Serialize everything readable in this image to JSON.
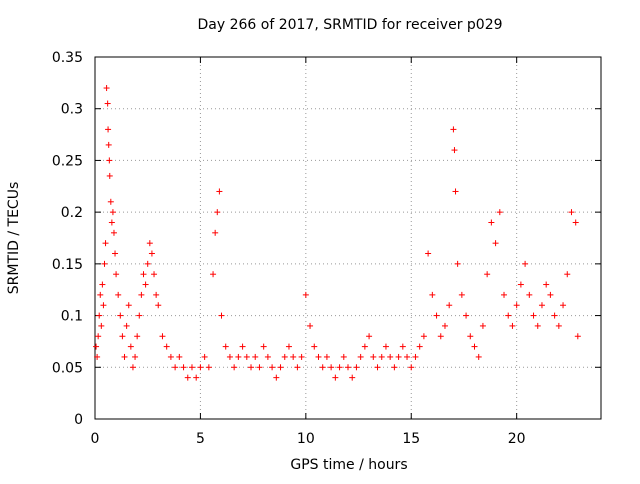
{
  "chart_data": {
    "type": "scatter",
    "title": "Day 266 of 2017, SRMTID for receiver p029",
    "xlabel": "GPS time / hours",
    "ylabel": "SRMTID / TECUs",
    "xlim": [
      0,
      24
    ],
    "ylim": [
      0,
      0.35
    ],
    "x_ticks": [
      0,
      5,
      10,
      15,
      20
    ],
    "x_tick_labels": [
      "0",
      "5",
      "10",
      "15",
      "20"
    ],
    "y_ticks": [
      0,
      0.05,
      0.1,
      0.15,
      0.2,
      0.25,
      0.3,
      0.35
    ],
    "y_tick_labels": [
      "0",
      "0.05",
      "0.1",
      "0.15",
      "0.2",
      "0.25",
      "0.3",
      "0.35"
    ],
    "grid": true,
    "marker": "+",
    "marker_color": "#ff0000",
    "series": [
      {
        "name": "SRMTID",
        "points": [
          [
            0.05,
            0.07
          ],
          [
            0.1,
            0.06
          ],
          [
            0.15,
            0.08
          ],
          [
            0.2,
            0.1
          ],
          [
            0.25,
            0.12
          ],
          [
            0.3,
            0.09
          ],
          [
            0.35,
            0.13
          ],
          [
            0.4,
            0.11
          ],
          [
            0.45,
            0.15
          ],
          [
            0.5,
            0.17
          ],
          [
            0.55,
            0.32
          ],
          [
            0.6,
            0.305
          ],
          [
            0.62,
            0.28
          ],
          [
            0.65,
            0.265
          ],
          [
            0.68,
            0.25
          ],
          [
            0.7,
            0.235
          ],
          [
            0.75,
            0.21
          ],
          [
            0.8,
            0.19
          ],
          [
            0.85,
            0.2
          ],
          [
            0.9,
            0.18
          ],
          [
            0.95,
            0.16
          ],
          [
            1.0,
            0.14
          ],
          [
            1.1,
            0.12
          ],
          [
            1.2,
            0.1
          ],
          [
            1.3,
            0.08
          ],
          [
            1.4,
            0.06
          ],
          [
            1.5,
            0.09
          ],
          [
            1.6,
            0.11
          ],
          [
            1.7,
            0.07
          ],
          [
            1.8,
            0.05
          ],
          [
            1.9,
            0.06
          ],
          [
            2.0,
            0.08
          ],
          [
            2.1,
            0.1
          ],
          [
            2.2,
            0.12
          ],
          [
            2.3,
            0.14
          ],
          [
            2.4,
            0.13
          ],
          [
            2.5,
            0.15
          ],
          [
            2.6,
            0.17
          ],
          [
            2.7,
            0.16
          ],
          [
            2.8,
            0.14
          ],
          [
            2.9,
            0.12
          ],
          [
            3.0,
            0.11
          ],
          [
            3.2,
            0.08
          ],
          [
            3.4,
            0.07
          ],
          [
            3.6,
            0.06
          ],
          [
            3.8,
            0.05
          ],
          [
            4.0,
            0.06
          ],
          [
            4.2,
            0.05
          ],
          [
            4.4,
            0.04
          ],
          [
            4.6,
            0.05
          ],
          [
            4.8,
            0.04
          ],
          [
            5.0,
            0.05
          ],
          [
            5.2,
            0.06
          ],
          [
            5.4,
            0.05
          ],
          [
            5.6,
            0.14
          ],
          [
            5.7,
            0.18
          ],
          [
            5.8,
            0.2
          ],
          [
            5.9,
            0.22
          ],
          [
            6.0,
            0.1
          ],
          [
            6.2,
            0.07
          ],
          [
            6.4,
            0.06
          ],
          [
            6.6,
            0.05
          ],
          [
            6.8,
            0.06
          ],
          [
            7.0,
            0.07
          ],
          [
            7.2,
            0.06
          ],
          [
            7.4,
            0.05
          ],
          [
            7.6,
            0.06
          ],
          [
            7.8,
            0.05
          ],
          [
            8.0,
            0.07
          ],
          [
            8.2,
            0.06
          ],
          [
            8.4,
            0.05
          ],
          [
            8.6,
            0.04
          ],
          [
            8.8,
            0.05
          ],
          [
            9.0,
            0.06
          ],
          [
            9.2,
            0.07
          ],
          [
            9.4,
            0.06
          ],
          [
            9.6,
            0.05
          ],
          [
            9.8,
            0.06
          ],
          [
            10.0,
            0.12
          ],
          [
            10.2,
            0.09
          ],
          [
            10.4,
            0.07
          ],
          [
            10.6,
            0.06
          ],
          [
            10.8,
            0.05
          ],
          [
            11.0,
            0.06
          ],
          [
            11.2,
            0.05
          ],
          [
            11.4,
            0.04
          ],
          [
            11.6,
            0.05
          ],
          [
            11.8,
            0.06
          ],
          [
            12.0,
            0.05
          ],
          [
            12.2,
            0.04
          ],
          [
            12.4,
            0.05
          ],
          [
            12.6,
            0.06
          ],
          [
            12.8,
            0.07
          ],
          [
            13.0,
            0.08
          ],
          [
            13.2,
            0.06
          ],
          [
            13.4,
            0.05
          ],
          [
            13.6,
            0.06
          ],
          [
            13.8,
            0.07
          ],
          [
            14.0,
            0.06
          ],
          [
            14.2,
            0.05
          ],
          [
            14.4,
            0.06
          ],
          [
            14.6,
            0.07
          ],
          [
            14.8,
            0.06
          ],
          [
            15.0,
            0.05
          ],
          [
            15.2,
            0.06
          ],
          [
            15.4,
            0.07
          ],
          [
            15.6,
            0.08
          ],
          [
            15.8,
            0.16
          ],
          [
            16.0,
            0.12
          ],
          [
            16.2,
            0.1
          ],
          [
            16.4,
            0.08
          ],
          [
            16.6,
            0.09
          ],
          [
            16.8,
            0.11
          ],
          [
            17.0,
            0.28
          ],
          [
            17.05,
            0.26
          ],
          [
            17.1,
            0.22
          ],
          [
            17.2,
            0.15
          ],
          [
            17.4,
            0.12
          ],
          [
            17.6,
            0.1
          ],
          [
            17.8,
            0.08
          ],
          [
            18.0,
            0.07
          ],
          [
            18.2,
            0.06
          ],
          [
            18.4,
            0.09
          ],
          [
            18.6,
            0.14
          ],
          [
            18.8,
            0.19
          ],
          [
            19.0,
            0.17
          ],
          [
            19.2,
            0.2
          ],
          [
            19.4,
            0.12
          ],
          [
            19.6,
            0.1
          ],
          [
            19.8,
            0.09
          ],
          [
            20.0,
            0.11
          ],
          [
            20.2,
            0.13
          ],
          [
            20.4,
            0.15
          ],
          [
            20.6,
            0.12
          ],
          [
            20.8,
            0.1
          ],
          [
            21.0,
            0.09
          ],
          [
            21.2,
            0.11
          ],
          [
            21.4,
            0.13
          ],
          [
            21.6,
            0.12
          ],
          [
            21.8,
            0.1
          ],
          [
            22.0,
            0.09
          ],
          [
            22.2,
            0.11
          ],
          [
            22.4,
            0.14
          ],
          [
            22.6,
            0.2
          ],
          [
            22.8,
            0.19
          ],
          [
            22.9,
            0.08
          ]
        ]
      }
    ]
  }
}
